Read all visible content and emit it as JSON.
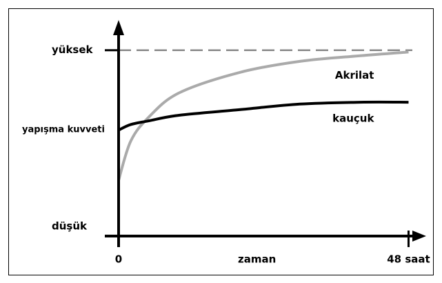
{
  "chart_data": {
    "type": "line",
    "x_label": "zaman",
    "y_label": "yapışma kuvveti",
    "x": [
      0,
      2,
      5,
      10,
      20,
      30,
      40,
      48
    ],
    "series": [
      {
        "name": "Akrilat",
        "color": "#aaaaaa",
        "values": [
          30,
          51,
          64,
          77,
          88,
          94,
          97,
          99
        ]
      },
      {
        "name": "kauçuk",
        "color": "#000000",
        "values": [
          57,
          60,
          62,
          65,
          68,
          71,
          72,
          72
        ]
      }
    ],
    "xlim": [
      0,
      50
    ],
    "ylim": [
      0,
      114
    ],
    "xticks": [
      0,
      {
        "value": 48,
        "label": "48 saat"
      }
    ],
    "yticks": [
      {
        "value": 0,
        "label": "düşük"
      },
      {
        "value": 100,
        "label": "yüksek"
      }
    ],
    "grid": true
  }
}
